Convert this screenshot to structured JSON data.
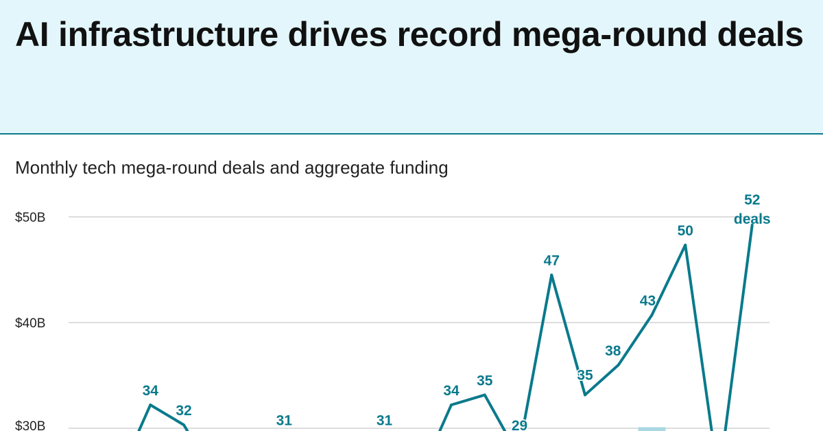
{
  "header": {
    "title": "AI infrastructure drives record mega-round deals"
  },
  "chart_data": {
    "type": "line",
    "title": "AI infrastructure drives record mega-round deals",
    "subtitle": "Monthly tech mega-round deals and aggregate funding",
    "y_axis": {
      "ticks": [
        {
          "value": 50,
          "label": "$50B"
        },
        {
          "value": 40,
          "label": "$40B"
        },
        {
          "value": 30,
          "label": "$30B"
        }
      ],
      "grid": true
    },
    "series": [
      {
        "type": "line",
        "color": "#0a7a8c",
        "values": [
          null,
          34,
          32,
          null,
          null,
          31,
          null,
          null,
          31,
          null,
          34,
          35,
          29,
          47,
          35,
          38,
          43,
          50,
          null,
          52
        ],
        "last_label_suffix": "deals"
      },
      {
        "type": "bar",
        "color": "#a9d8e2",
        "values": [
          null,
          null,
          null,
          null,
          null,
          null,
          null,
          null,
          null,
          null,
          null,
          null,
          null,
          null,
          null,
          null,
          30.1,
          null,
          null,
          null
        ]
      }
    ]
  }
}
